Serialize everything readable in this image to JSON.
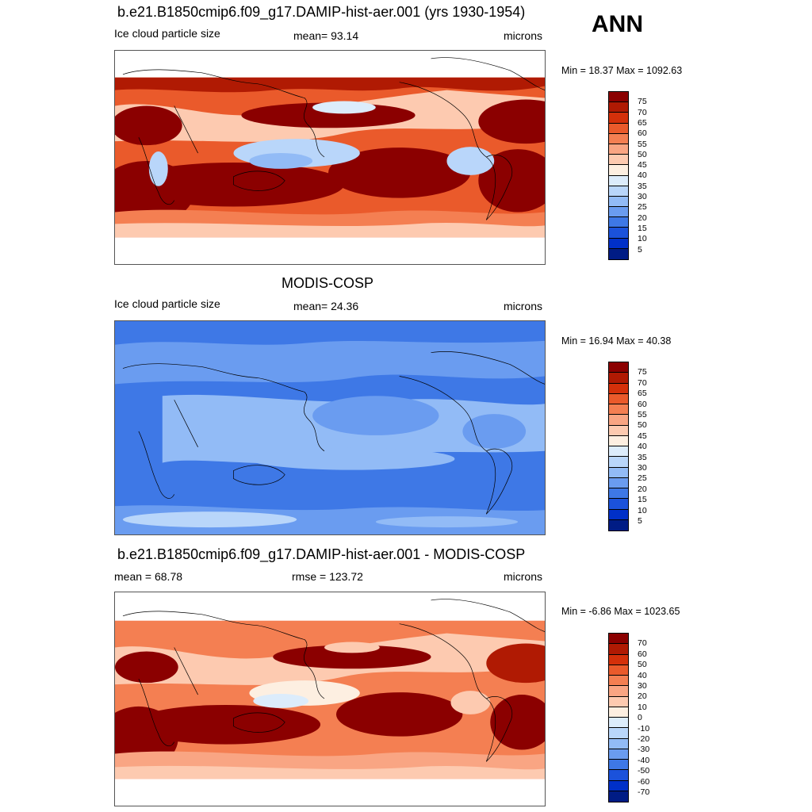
{
  "season": "ANN",
  "panels": [
    {
      "title": "b.e21.B1850cmip6.f09_g17.DAMIP-hist-aer.001 (yrs 1930-1954)",
      "left_label": "Ice cloud particle size",
      "center_label": "mean=  93.14",
      "right_label": "microns",
      "minmax": "Min =  18.37 Max = 1092.63",
      "field": "model",
      "colorbar": {
        "labels": [
          "75",
          "70",
          "65",
          "60",
          "55",
          "50",
          "45",
          "40",
          "35",
          "30",
          "25",
          "20",
          "15",
          "10",
          "5"
        ],
        "colors": [
          "#8b0000",
          "#b01a03",
          "#d4300a",
          "#ea5a2b",
          "#f47f52",
          "#f9a583",
          "#fdcab0",
          "#fdefe1",
          "#dcecfb",
          "#b9d6fa",
          "#92bbf6",
          "#6a9cf0",
          "#3e78e6",
          "#1b52db",
          "#0030c8",
          "#001c85"
        ]
      }
    },
    {
      "title": "MODIS-COSP",
      "left_label": "Ice cloud particle size",
      "center_label": "mean=  24.36",
      "right_label": "microns",
      "minmax": "Min =  16.94 Max =  40.38",
      "field": "obs",
      "colorbar": {
        "labels": [
          "75",
          "70",
          "65",
          "60",
          "55",
          "50",
          "45",
          "40",
          "35",
          "30",
          "25",
          "20",
          "15",
          "10",
          "5"
        ],
        "colors": [
          "#8b0000",
          "#b01a03",
          "#d4300a",
          "#ea5a2b",
          "#f47f52",
          "#f9a583",
          "#fdcab0",
          "#fdefe1",
          "#dcecfb",
          "#b9d6fa",
          "#92bbf6",
          "#6a9cf0",
          "#3e78e6",
          "#1b52db",
          "#0030c8",
          "#001c85"
        ]
      }
    },
    {
      "title": "b.e21.B1850cmip6.f09_g17.DAMIP-hist-aer.001 - MODIS-COSP",
      "left_label": "mean =  68.78",
      "center_label": "rmse = 123.72",
      "right_label": "microns",
      "minmax": "Min =  -6.86 Max = 1023.65",
      "field": "diff",
      "colorbar": {
        "labels": [
          "70",
          "60",
          "50",
          "40",
          "30",
          "20",
          "10",
          "0",
          "-10",
          "-20",
          "-30",
          "-40",
          "-50",
          "-60",
          "-70"
        ],
        "colors": [
          "#8b0000",
          "#b01a03",
          "#d4300a",
          "#ea5a2b",
          "#f47f52",
          "#f9a583",
          "#fdcab0",
          "#fdefe1",
          "#dcecfb",
          "#b9d6fa",
          "#92bbf6",
          "#6a9cf0",
          "#3e78e6",
          "#1b52db",
          "#0030c8",
          "#001c85"
        ]
      }
    }
  ]
}
